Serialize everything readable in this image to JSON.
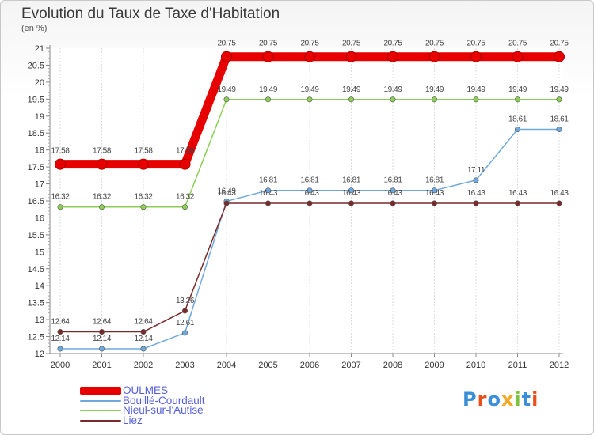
{
  "chart_data": {
    "type": "line",
    "title": "Evolution du Taux de Taxe d'Habitation",
    "subtitle": "(en %)",
    "x": [
      "2000",
      "2001",
      "2002",
      "2003",
      "2004",
      "2005",
      "2006",
      "2007",
      "2008",
      "2009",
      "2010",
      "2011",
      "2012"
    ],
    "ylim": [
      12,
      21
    ],
    "yticks": [
      "12",
      "12.5",
      "13",
      "13.5",
      "14",
      "14.5",
      "15",
      "15.5",
      "16",
      "16.5",
      "17",
      "17.5",
      "18",
      "18.5",
      "19",
      "19.5",
      "20",
      "20.5",
      "21"
    ],
    "series": [
      {
        "name": "OULMES",
        "color": "#e60000",
        "values": [
          17.58,
          17.58,
          17.58,
          17.58,
          20.75,
          20.75,
          20.75,
          20.75,
          20.75,
          20.75,
          20.75,
          20.75,
          20.75
        ],
        "labels": [
          "17.58",
          "17.58",
          "17.58",
          "17.58",
          "20.75",
          "20.75",
          "20.75",
          "20.75",
          "20.75",
          "20.75",
          "20.75",
          "20.75",
          "20.75"
        ]
      },
      {
        "name": "Bouillé-Courdault",
        "color": "#6fa8dc",
        "values": [
          12.14,
          12.14,
          12.14,
          12.61,
          16.49,
          16.81,
          16.81,
          16.81,
          16.81,
          16.81,
          17.11,
          18.61,
          18.61
        ],
        "labels": [
          "12.14",
          "12.14",
          "12.14",
          "12.61",
          "16.49",
          "16.81",
          "16.81",
          "16.81",
          "16.81",
          "16.81",
          "17.11",
          "18.61",
          "18.61"
        ]
      },
      {
        "name": "Nieul-sur-l'Autise",
        "color": "#8ccf55",
        "values": [
          16.32,
          16.32,
          16.32,
          16.32,
          19.49,
          19.49,
          19.49,
          19.49,
          19.49,
          19.49,
          19.49,
          19.49,
          19.49
        ],
        "labels": [
          "16.32",
          "16.32",
          "16.32",
          "16.32",
          "19.49",
          "19.49",
          "19.49",
          "19.49",
          "19.49",
          "19.49",
          "19.49",
          "19.49",
          "19.49"
        ]
      },
      {
        "name": "Liez",
        "color": "#7a2a2a",
        "values": [
          12.64,
          12.64,
          12.64,
          13.26,
          16.43,
          16.43,
          16.43,
          16.43,
          16.43,
          16.43,
          16.43,
          16.43,
          16.43
        ],
        "labels": [
          "12.64",
          "12.64",
          "12.64",
          "13.26",
          "16.43",
          "16.43",
          "16.43",
          "16.43",
          "16.43",
          "16.43",
          "16.43",
          "16.43",
          "16.43"
        ]
      }
    ]
  },
  "brand": {
    "letters": [
      "P",
      "r",
      "o",
      "x",
      "i",
      "t",
      "i"
    ],
    "colors": [
      "#3a8fd8",
      "#e94e1b",
      "#3a8fd8",
      "#f5a623",
      "#7cc242",
      "#3a8fd8",
      "#e94e1b"
    ]
  }
}
